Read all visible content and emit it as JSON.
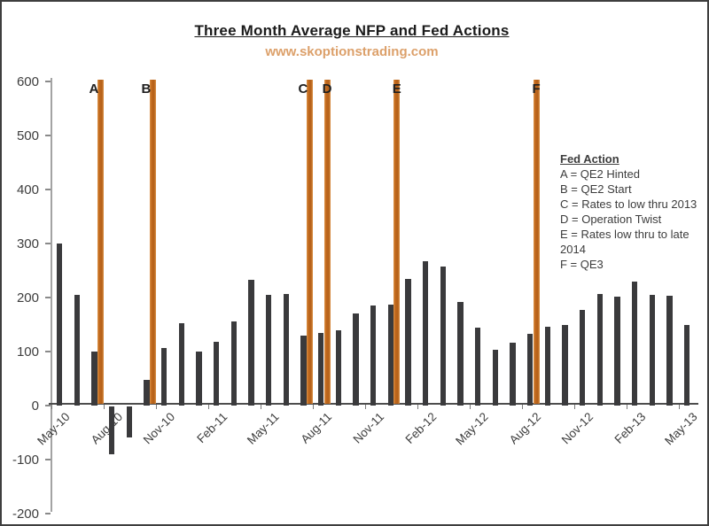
{
  "title": "Three Month Average NFP and Fed Actions",
  "subtitle": "www.skoptionstrading.com",
  "legend": {
    "heading": "Fed Action",
    "items": [
      "A = QE2 Hinted",
      "B = QE2 Start",
      "C = Rates to low thru 2013",
      "D = Operation Twist",
      "E = Rates low thru to late 2014",
      "F = QE3"
    ]
  },
  "chart_data": {
    "type": "bar",
    "title": "Three Month Average NFP and Fed Actions",
    "subtitle": "www.skoptionstrading.com",
    "xlabel": "",
    "ylabel": "",
    "ylim": [
      -200,
      600
    ],
    "y_ticks": [
      600,
      500,
      400,
      300,
      200,
      100,
      0,
      -100,
      -200
    ],
    "grid": false,
    "bar_color": "#3a3a3c",
    "categories": [
      "May-10",
      "Jun-10",
      "Jul-10",
      "Aug-10",
      "Sep-10",
      "Oct-10",
      "Nov-10",
      "Dec-10",
      "Jan-11",
      "Feb-11",
      "Mar-11",
      "Apr-11",
      "May-11",
      "Jun-11",
      "Jul-11",
      "Aug-11",
      "Sep-11",
      "Oct-11",
      "Nov-11",
      "Dec-11",
      "Jan-12",
      "Feb-12",
      "Mar-12",
      "Apr-12",
      "May-12",
      "Jun-12",
      "Jul-12",
      "Aug-12",
      "Sep-12",
      "Oct-12",
      "Nov-12",
      "Dec-12",
      "Jan-13",
      "Feb-13",
      "Mar-13",
      "Apr-13",
      "May-13"
    ],
    "values": [
      300,
      205,
      100,
      -88,
      -58,
      47,
      107,
      153,
      100,
      118,
      155,
      233,
      205,
      207,
      130,
      135,
      139,
      171,
      185,
      187,
      234,
      267,
      257,
      192,
      144,
      104,
      116,
      133,
      146,
      149,
      177,
      207,
      201,
      230,
      205,
      204,
      150
    ],
    "x_tick_labels": [
      "May-10",
      "Aug-10",
      "Nov-10",
      "Feb-11",
      "May-11",
      "Aug-11",
      "Nov-11",
      "Feb-12",
      "May-12",
      "Aug-12",
      "Nov-12",
      "Feb-13",
      "May-13"
    ],
    "fed_actions": {
      "color": "#bf671c",
      "marker_bar_top_value": 600,
      "events": [
        {
          "letter": "A",
          "after_month": "Jul-10",
          "month_index": 2,
          "description": "QE2 Hinted",
          "label_position": "left-of-bar"
        },
        {
          "letter": "B",
          "after_month": "Oct-10",
          "month_index": 5,
          "description": "QE2 Start",
          "label_position": "left-of-bar"
        },
        {
          "letter": "C",
          "after_month": "Jul-11",
          "month_index": 14,
          "description": "Rates to low thru 2013",
          "label_position": "left-of-bar"
        },
        {
          "letter": "D",
          "after_month": "Aug-11",
          "month_index": 15,
          "description": "Operation Twist",
          "label_position": "on-bar"
        },
        {
          "letter": "E",
          "after_month": "Dec-11",
          "month_index": 19,
          "description": "Rates low thru to late 2014",
          "label_position": "on-bar"
        },
        {
          "letter": "F",
          "after_month": "Aug-12",
          "month_index": 27,
          "description": "QE3",
          "label_position": "on-bar"
        }
      ]
    }
  }
}
